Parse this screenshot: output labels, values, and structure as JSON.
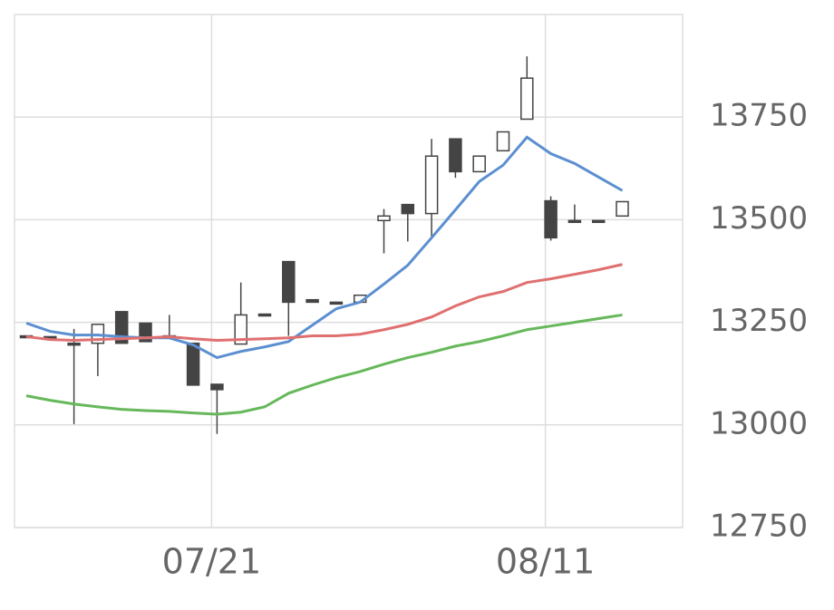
{
  "chart_data": {
    "type": "candlestick",
    "categories": [
      null,
      null,
      null,
      null,
      null,
      null,
      null,
      null,
      "07/21",
      null,
      null,
      null,
      null,
      null,
      null,
      null,
      null,
      null,
      null,
      null,
      null,
      null,
      "08/11",
      null,
      null,
      null
    ],
    "open": [
      13217,
      13215,
      13199,
      13199,
      13276,
      13248,
      13217,
      13199,
      13099,
      13197,
      13270,
      13398,
      13305,
      13299,
      13299,
      13498,
      13537,
      13515,
      13697,
      13617,
      13668,
      13745,
      13546,
      13498,
      13498,
      13509
    ],
    "high": [
      13217,
      13215,
      13234,
      13245,
      13276,
      13248,
      13268,
      13199,
      13099,
      13347,
      13270,
      13398,
      13305,
      13299,
      13316,
      13526,
      13537,
      13697,
      13697,
      13655,
      13714,
      13898,
      13557,
      13537,
      13498,
      13544
    ],
    "low": [
      13217,
      13215,
      13002,
      13119,
      13199,
      13203,
      13217,
      13097,
      12978,
      13197,
      13270,
      13217,
      13299,
      13299,
      13299,
      13418,
      13447,
      13453,
      13602,
      13617,
      13668,
      13745,
      13449,
      13498,
      13498,
      13509
    ],
    "close": [
      13217,
      13215,
      13199,
      13245,
      13199,
      13203,
      13217,
      13097,
      13086,
      13268,
      13270,
      13299,
      13299,
      13299,
      13316,
      13509,
      13515,
      13655,
      13617,
      13655,
      13714,
      13845,
      13456,
      13498,
      13498,
      13544
    ],
    "up_color": "#ffffff",
    "down_color": "#444444",
    "candle_edge": "#444444",
    "series": [
      {
        "color": "#5b8fd0",
        "values": [
          13248,
          13228,
          13219,
          13219,
          13215,
          13212,
          13212,
          13195,
          13164,
          13179,
          13190,
          13203,
          13243,
          13283,
          13299,
          13343,
          13389,
          13456,
          13524,
          13593,
          13633,
          13701,
          13661,
          13637,
          13604,
          13571
        ]
      },
      {
        "color": "#e07070",
        "values": [
          13215,
          13208,
          13206,
          13208,
          13210,
          13212,
          13215,
          13210,
          13206,
          13208,
          13210,
          13212,
          13217,
          13217,
          13221,
          13232,
          13245,
          13263,
          13290,
          13312,
          13325,
          13347,
          13356,
          13367,
          13378,
          13391
        ]
      },
      {
        "color": "#66b85a",
        "values": [
          13071,
          13060,
          13051,
          13044,
          13038,
          13035,
          13033,
          13029,
          13026,
          13031,
          13044,
          13077,
          13097,
          13115,
          13130,
          13148,
          13164,
          13177,
          13192,
          13203,
          13217,
          13232,
          13241,
          13250,
          13259,
          13268
        ]
      }
    ],
    "ylim": [
      12750,
      14000
    ],
    "yticks": [
      12750,
      13000,
      13250,
      13500,
      13750
    ],
    "grid": true
  }
}
